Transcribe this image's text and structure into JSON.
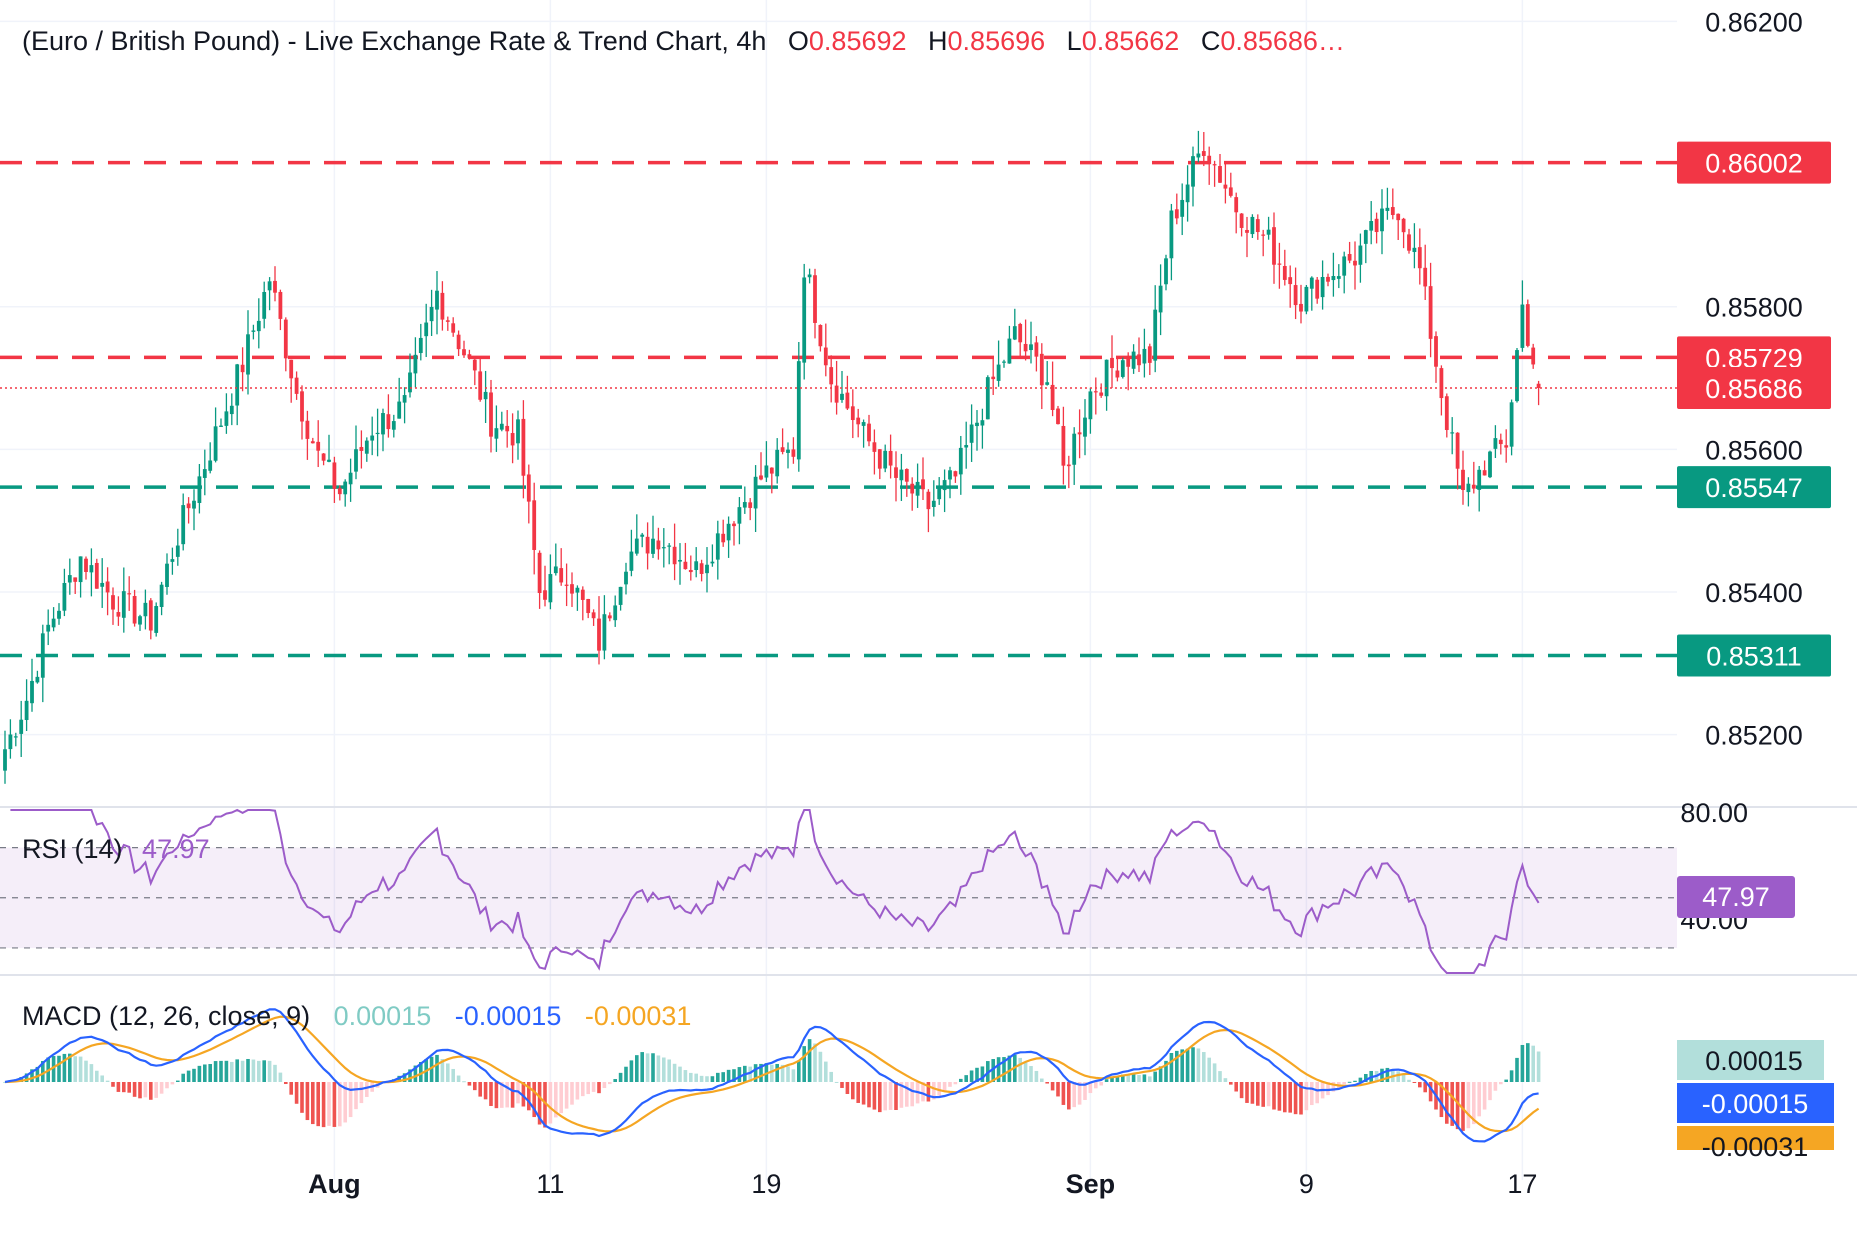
{
  "header": {
    "title": "(Euro / British Pound) - Live Exchange Rate & Trend Chart, 4h",
    "ohlc": [
      {
        "key": "O",
        "value": "0.85692"
      },
      {
        "key": "H",
        "value": "0.85696"
      },
      {
        "key": "L",
        "value": "0.85662"
      },
      {
        "key": "C",
        "value": "0.85686…"
      }
    ]
  },
  "colors": {
    "up": "#089981",
    "down": "#f23645",
    "rsi": "#9c5cc9",
    "macd": "#2962ff",
    "signal": "#f5a623",
    "hist_up": "#26a69a",
    "hist_up_light": "#b2dfdb",
    "hist_down": "#ef5350",
    "hist_down_light": "#ffcdd2",
    "current_tag": "#f23645"
  },
  "price_axis": {
    "ticks": [
      "0.86200",
      "0.85800",
      "0.85600",
      "0.85400",
      "0.85200"
    ],
    "tick_values": [
      0.862,
      0.858,
      0.856,
      0.854,
      0.852
    ]
  },
  "x_axis": {
    "labels": [
      {
        "text": "Aug",
        "bold": true,
        "bar": 61
      },
      {
        "text": "11",
        "bold": false,
        "bar": 101
      },
      {
        "text": "19",
        "bold": false,
        "bar": 141
      },
      {
        "text": "Sep",
        "bold": true,
        "bar": 201
      },
      {
        "text": "9",
        "bold": false,
        "bar": 241
      },
      {
        "text": "17",
        "bold": false,
        "bar": 281
      }
    ]
  },
  "levels": [
    {
      "value": 0.86002,
      "label": "0.86002",
      "kind": "resistance"
    },
    {
      "value": 0.85729,
      "label": "0.85729",
      "kind": "resistance"
    },
    {
      "value": 0.85547,
      "label": "0.85547",
      "kind": "support"
    },
    {
      "value": 0.85311,
      "label": "0.85311",
      "kind": "support"
    }
  ],
  "current_price": {
    "value": 0.85686,
    "label": "0.85686"
  },
  "rsi": {
    "title": "RSI (14)",
    "value_label": "47.97",
    "value": 47.97,
    "upper": 70,
    "lower": 30,
    "axis_labels": [
      "80.00",
      "40.00"
    ]
  },
  "macd": {
    "title": "MACD (12, 26, close, 9)",
    "hist_label": "0.00015",
    "macd_label": "-0.00015",
    "signal_label": "-0.00031"
  },
  "chart_data": {
    "type": "candlestick",
    "symbol": "EUR/GBP",
    "timeframe": "4h",
    "last": {
      "open": 0.85692,
      "high": 0.85696,
      "low": 0.85662,
      "close": 0.85686
    },
    "keypoints": [
      [
        0,
        0.8518
      ],
      [
        4,
        0.8525
      ],
      [
        8,
        0.8535
      ],
      [
        14,
        0.8545
      ],
      [
        20,
        0.8539
      ],
      [
        27,
        0.8536
      ],
      [
        32,
        0.8548
      ],
      [
        38,
        0.856
      ],
      [
        44,
        0.8572
      ],
      [
        49,
        0.8584
      ],
      [
        54,
        0.8568
      ],
      [
        58,
        0.8559
      ],
      [
        62,
        0.8554
      ],
      [
        68,
        0.8563
      ],
      [
        74,
        0.8566
      ],
      [
        80,
        0.8582
      ],
      [
        86,
        0.8572
      ],
      [
        90,
        0.8564
      ],
      [
        95,
        0.8562
      ],
      [
        99,
        0.854
      ],
      [
        104,
        0.8543
      ],
      [
        110,
        0.8533
      ],
      [
        115,
        0.8545
      ],
      [
        121,
        0.8548
      ],
      [
        128,
        0.8543
      ],
      [
        134,
        0.855
      ],
      [
        140,
        0.8556
      ],
      [
        146,
        0.856
      ],
      [
        148,
        0.8586
      ],
      [
        153,
        0.857
      ],
      [
        159,
        0.8562
      ],
      [
        165,
        0.8556
      ],
      [
        171,
        0.8552
      ],
      [
        176,
        0.8556
      ],
      [
        182,
        0.8568
      ],
      [
        187,
        0.8576
      ],
      [
        193,
        0.857
      ],
      [
        196,
        0.8557
      ],
      [
        201,
        0.8568
      ],
      [
        207,
        0.8573
      ],
      [
        212,
        0.8573
      ],
      [
        216,
        0.8592
      ],
      [
        222,
        0.8603
      ],
      [
        228,
        0.8594
      ],
      [
        234,
        0.8589
      ],
      [
        240,
        0.8581
      ],
      [
        244,
        0.8584
      ],
      [
        250,
        0.8587
      ],
      [
        254,
        0.8591
      ],
      [
        258,
        0.8594
      ],
      [
        262,
        0.8585
      ],
      [
        266,
        0.8568
      ],
      [
        270,
        0.8553
      ],
      [
        274,
        0.8558
      ],
      [
        278,
        0.8561
      ],
      [
        281,
        0.858
      ],
      [
        284,
        0.85686
      ]
    ],
    "price_range": [
      0.851,
      0.8623
    ],
    "rsi_range": [
      20,
      85
    ],
    "grid": true
  }
}
